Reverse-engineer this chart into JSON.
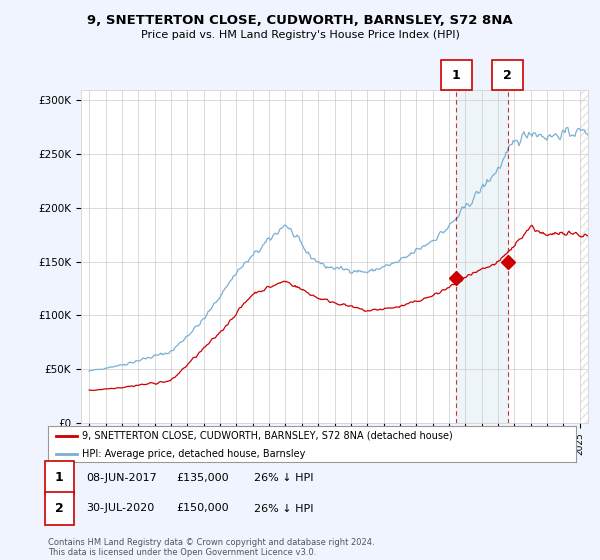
{
  "title": "9, SNETTERTON CLOSE, CUDWORTH, BARNSLEY, S72 8NA",
  "subtitle": "Price paid vs. HM Land Registry's House Price Index (HPI)",
  "ylabel_ticks": [
    "£0",
    "£50K",
    "£100K",
    "£150K",
    "£200K",
    "£250K",
    "£300K"
  ],
  "ytick_values": [
    0,
    50000,
    100000,
    150000,
    200000,
    250000,
    300000
  ],
  "ylim": [
    0,
    310000
  ],
  "xlim_start": 1994.5,
  "xlim_end": 2025.5,
  "red_color": "#cc0000",
  "blue_color": "#7ab0d4",
  "marker1_x": 2017.44,
  "marker1_y": 135000,
  "marker2_x": 2020.58,
  "marker2_y": 150000,
  "vline1_x": 2017.44,
  "vline2_x": 2020.58,
  "legend_label_red": "9, SNETTERTON CLOSE, CUDWORTH, BARNSLEY, S72 8NA (detached house)",
  "legend_label_blue": "HPI: Average price, detached house, Barnsley",
  "annotation1_date": "08-JUN-2017",
  "annotation1_price": "£135,000",
  "annotation1_hpi": "26% ↓ HPI",
  "annotation2_date": "30-JUL-2020",
  "annotation2_price": "£150,000",
  "annotation2_hpi": "26% ↓ HPI",
  "footer": "Contains HM Land Registry data © Crown copyright and database right 2024.\nThis data is licensed under the Open Government Licence v3.0.",
  "background_color": "#f0f4ff",
  "plot_bg_color": "#ffffff",
  "grid_color": "#cccccc",
  "hatch_color": "#cccccc"
}
